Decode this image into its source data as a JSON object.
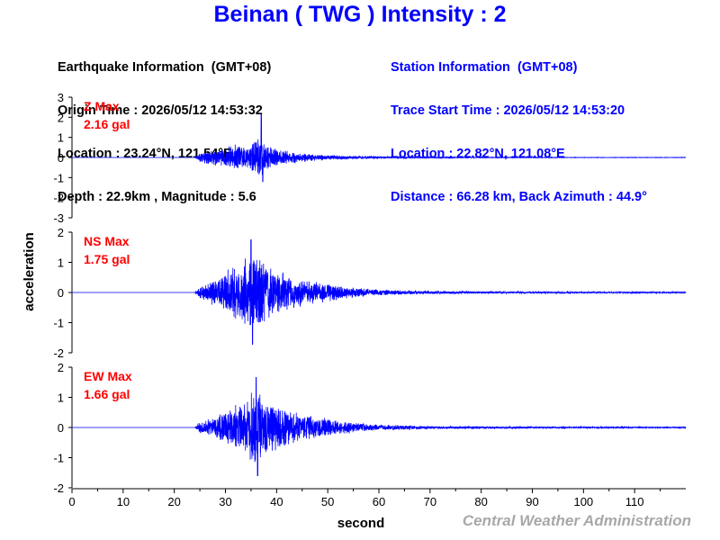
{
  "header": {
    "title": "Beinan ( TWG ) Intensity : 2"
  },
  "earthquake": {
    "heading": "Earthquake Information  (GMT+08)",
    "origin_time": "Origin Time : 2026/05/12 14:53:32",
    "location": "Location : 23.24°N, 121.54°E",
    "depth_magnitude": "Depth : 22.9km , Magnitude : 5.6"
  },
  "station": {
    "heading": "Station Information  (GMT+08)",
    "trace_start": "Trace Start Time : 2026/05/12 14:53:20",
    "location": "Location : 22.82°N, 121.08°E",
    "distance": "Distance : 66.28 km, Back Azimuth : 44.9°"
  },
  "credit": "Central Weather Administration",
  "colors": {
    "trace": "#0000ff",
    "max_label": "#ff0000",
    "title": "#0000ff",
    "credit": "#a8a8a8"
  },
  "chart_data": [
    {
      "type": "line",
      "component": "Z",
      "max_label": "Z Max",
      "max_value": "2.16 gal",
      "ylim": [
        -3,
        3
      ],
      "yticks": [
        "3",
        "2",
        "1",
        "0",
        "-1",
        "-2",
        "-3"
      ],
      "onset_s": 24,
      "peak_s": 37,
      "peak": 2.16,
      "min": -1.2,
      "envelope": [
        [
          0,
          0.0
        ],
        [
          24,
          0.0
        ],
        [
          25,
          0.25
        ],
        [
          26,
          0.35
        ],
        [
          28,
          0.45
        ],
        [
          30,
          0.5
        ],
        [
          32,
          0.7
        ],
        [
          34,
          0.55
        ],
        [
          36,
          0.9
        ],
        [
          37,
          1.1
        ],
        [
          38,
          0.7
        ],
        [
          40,
          0.45
        ],
        [
          43,
          0.3
        ],
        [
          48,
          0.15
        ],
        [
          55,
          0.08
        ],
        [
          65,
          0.04
        ],
        [
          80,
          0.02
        ],
        [
          100,
          0.01
        ],
        [
          120,
          0.01
        ]
      ]
    },
    {
      "type": "line",
      "component": "NS",
      "max_label": "NS Max",
      "max_value": "1.75 gal",
      "ylim": [
        -2,
        2
      ],
      "yticks": [
        "2",
        "1",
        "0",
        "-1",
        "-2"
      ],
      "onset_s": 24,
      "peak_s": 35,
      "peak": 1.75,
      "min": -1.72,
      "envelope": [
        [
          0,
          0.0
        ],
        [
          24,
          0.0
        ],
        [
          25,
          0.2
        ],
        [
          27,
          0.4
        ],
        [
          30,
          0.7
        ],
        [
          33,
          1.1
        ],
        [
          35,
          1.4
        ],
        [
          37,
          1.2
        ],
        [
          40,
          0.8
        ],
        [
          43,
          0.6
        ],
        [
          46,
          0.45
        ],
        [
          50,
          0.3
        ],
        [
          55,
          0.18
        ],
        [
          60,
          0.1
        ],
        [
          70,
          0.05
        ],
        [
          90,
          0.03
        ],
        [
          120,
          0.02
        ]
      ]
    },
    {
      "type": "line",
      "component": "EW",
      "max_label": "EW Max",
      "max_value": "1.66 gal",
      "ylim": [
        -2,
        2
      ],
      "yticks": [
        "2",
        "1",
        "0",
        "-1",
        "-2"
      ],
      "onset_s": 24,
      "peak_s": 36,
      "peak": 1.66,
      "min": -1.6,
      "envelope": [
        [
          0,
          0.0
        ],
        [
          24,
          0.0
        ],
        [
          25,
          0.2
        ],
        [
          28,
          0.4
        ],
        [
          31,
          0.7
        ],
        [
          34,
          1.0
        ],
        [
          36,
          1.3
        ],
        [
          38,
          1.0
        ],
        [
          41,
          0.7
        ],
        [
          45,
          0.45
        ],
        [
          50,
          0.3
        ],
        [
          55,
          0.18
        ],
        [
          60,
          0.1
        ],
        [
          70,
          0.05
        ],
        [
          90,
          0.03
        ],
        [
          120,
          0.02
        ]
      ]
    }
  ],
  "axes": {
    "xlabel": "second",
    "ylabel": "acceleration",
    "xlim": [
      0,
      120
    ],
    "xticks": [
      "0",
      "10",
      "20",
      "30",
      "40",
      "50",
      "60",
      "70",
      "80",
      "90",
      "100",
      "110"
    ]
  }
}
